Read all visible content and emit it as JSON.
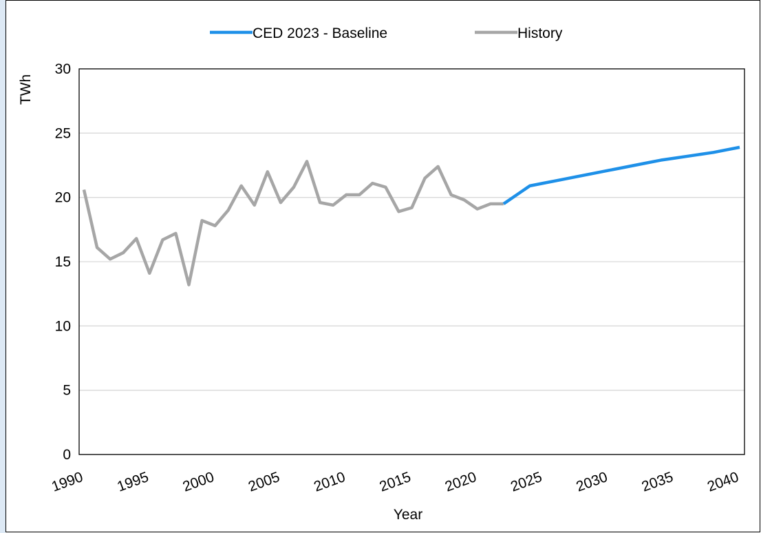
{
  "chart_data": {
    "type": "line",
    "x": [
      1990,
      1991,
      1992,
      1993,
      1994,
      1995,
      1996,
      1997,
      1998,
      1999,
      2000,
      2001,
      2002,
      2003,
      2004,
      2005,
      2006,
      2007,
      2008,
      2009,
      2010,
      2011,
      2012,
      2013,
      2014,
      2015,
      2016,
      2017,
      2018,
      2019,
      2020,
      2021,
      2022,
      2023,
      2024,
      2025,
      2026,
      2027,
      2028,
      2029,
      2030,
      2031,
      2032,
      2033,
      2034,
      2035,
      2036,
      2037,
      2038,
      2039,
      2040
    ],
    "series": [
      {
        "name": "CED 2023 - Baseline",
        "color": "#1e90e8",
        "values": [
          null,
          null,
          null,
          null,
          null,
          null,
          null,
          null,
          null,
          null,
          null,
          null,
          null,
          null,
          null,
          null,
          null,
          null,
          null,
          null,
          null,
          null,
          null,
          null,
          null,
          null,
          null,
          null,
          null,
          null,
          null,
          null,
          19.5,
          20.2,
          20.9,
          21.1,
          21.3,
          21.5,
          21.7,
          21.9,
          22.1,
          22.3,
          22.5,
          22.7,
          22.9,
          23.05,
          23.2,
          23.35,
          23.5,
          23.7,
          23.9
        ]
      },
      {
        "name": "History",
        "color": "#a6a6a6",
        "values": [
          20.6,
          16.1,
          15.2,
          15.7,
          16.8,
          14.1,
          16.7,
          17.2,
          13.2,
          18.2,
          17.8,
          19.0,
          20.9,
          19.4,
          22.0,
          19.6,
          20.8,
          22.8,
          19.6,
          19.4,
          20.2,
          20.2,
          21.1,
          20.8,
          18.9,
          19.2,
          21.5,
          22.4,
          20.2,
          19.8,
          19.1,
          19.5,
          19.5,
          null,
          null,
          null,
          null,
          null,
          null,
          null,
          null,
          null,
          null,
          null,
          null,
          null,
          null,
          null,
          null,
          null,
          null
        ]
      }
    ],
    "xlabel": "Year",
    "ylabel": "TWh",
    "xlim": [
      1990,
      2040
    ],
    "xticks": [
      1990,
      1995,
      2000,
      2005,
      2010,
      2015,
      2020,
      2025,
      2030,
      2035,
      2040
    ],
    "ylim": [
      0,
      30
    ],
    "yticks": [
      0,
      5,
      10,
      15,
      20,
      25,
      30
    ],
    "grid": true,
    "legend": "top"
  }
}
